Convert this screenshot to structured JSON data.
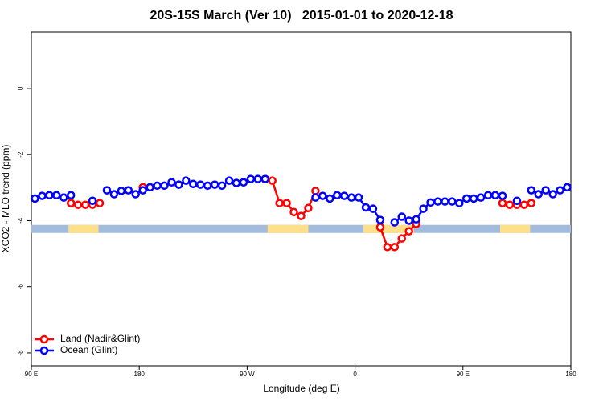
{
  "chart_data": {
    "type": "line",
    "title": "20S-15S March (Ver 10)   2015-01-01 to 2020-12-18",
    "x_label": "Longitude (deg E)",
    "y_label": "XCO2 - MLO trend (ppm)",
    "xlim": [
      90,
      540
    ],
    "ylim": [
      -8.39,
      1.7
    ],
    "xticks": [
      {
        "value": 90,
        "label": "90 E"
      },
      180,
      {
        "value": 270,
        "label": "90 W"
      },
      {
        "value": 360,
        "label": "0"
      },
      {
        "value": 450,
        "label": "90 E"
      },
      {
        "value": 540,
        "label": "180"
      }
    ],
    "yticks": [
      0,
      -2,
      -4,
      -6,
      -8
    ],
    "legend_position": "bottom-left",
    "surface_band": {
      "y": -4.25,
      "ocean_color": "#a3bbdd",
      "land_color": "#ffe08a",
      "land_ranges": [
        [
          121,
          146
        ],
        [
          287,
          321
        ],
        [
          367,
          409
        ],
        [
          481,
          506
        ]
      ]
    },
    "x": [
      93,
      99,
      105,
      111,
      117,
      123,
      129,
      135,
      141,
      147,
      153,
      159,
      165,
      171,
      177,
      183,
      189,
      195,
      201,
      207,
      213,
      219,
      225,
      231,
      237,
      243,
      249,
      255,
      261,
      267,
      273,
      279,
      285,
      291,
      297,
      303,
      309,
      315,
      321,
      327,
      333,
      339,
      345,
      351,
      357,
      363,
      369,
      375,
      381,
      387,
      393,
      399,
      405,
      411,
      417,
      423,
      429,
      435,
      441,
      447,
      453,
      459,
      465,
      471,
      477,
      483,
      489,
      495,
      501,
      507,
      513,
      519,
      525,
      531,
      537
    ],
    "series": [
      {
        "name": "Land (Nadir&Glint)",
        "color": "#ff0000",
        "values": [
          null,
          null,
          null,
          null,
          null,
          -3.47,
          -3.52,
          -3.52,
          -3.52,
          -3.47,
          null,
          null,
          null,
          null,
          null,
          -2.99,
          null,
          null,
          null,
          null,
          null,
          null,
          null,
          null,
          null,
          null,
          null,
          null,
          null,
          null,
          null,
          null,
          -2.74,
          -2.79,
          -3.47,
          -3.47,
          -3.74,
          -3.86,
          -3.62,
          -3.1,
          null,
          null,
          null,
          null,
          null,
          null,
          null,
          null,
          -4.2,
          -4.8,
          -4.8,
          -4.54,
          -4.32,
          -4.1,
          null,
          null,
          null,
          null,
          null,
          null,
          null,
          null,
          null,
          null,
          null,
          -3.47,
          -3.52,
          -3.52,
          -3.52,
          -3.47,
          null,
          null,
          null,
          null,
          null
        ]
      },
      {
        "name": "Ocean (Glint)",
        "color": "#0000ff",
        "values": [
          -3.33,
          -3.25,
          -3.23,
          -3.23,
          -3.3,
          -3.23,
          null,
          null,
          -3.4,
          null,
          -3.08,
          -3.2,
          -3.1,
          -3.08,
          -3.2,
          -3.08,
          -2.99,
          -2.94,
          -2.94,
          -2.84,
          -2.91,
          -2.79,
          -2.89,
          -2.91,
          -2.94,
          -2.91,
          -2.94,
          -2.79,
          -2.86,
          -2.84,
          -2.74,
          -2.74,
          -2.74,
          null,
          null,
          null,
          null,
          null,
          null,
          -3.3,
          -3.25,
          -3.33,
          -3.23,
          -3.25,
          -3.3,
          -3.3,
          -3.6,
          -3.64,
          -3.98,
          null,
          -4.05,
          -3.88,
          -4.0,
          -3.96,
          -3.64,
          -3.45,
          -3.42,
          -3.42,
          -3.42,
          -3.47,
          -3.33,
          -3.33,
          -3.3,
          -3.23,
          -3.23,
          -3.25,
          null,
          -3.4,
          null,
          -3.08,
          -3.2,
          -3.08,
          -3.2,
          -3.08,
          -2.99
        ]
      }
    ]
  }
}
